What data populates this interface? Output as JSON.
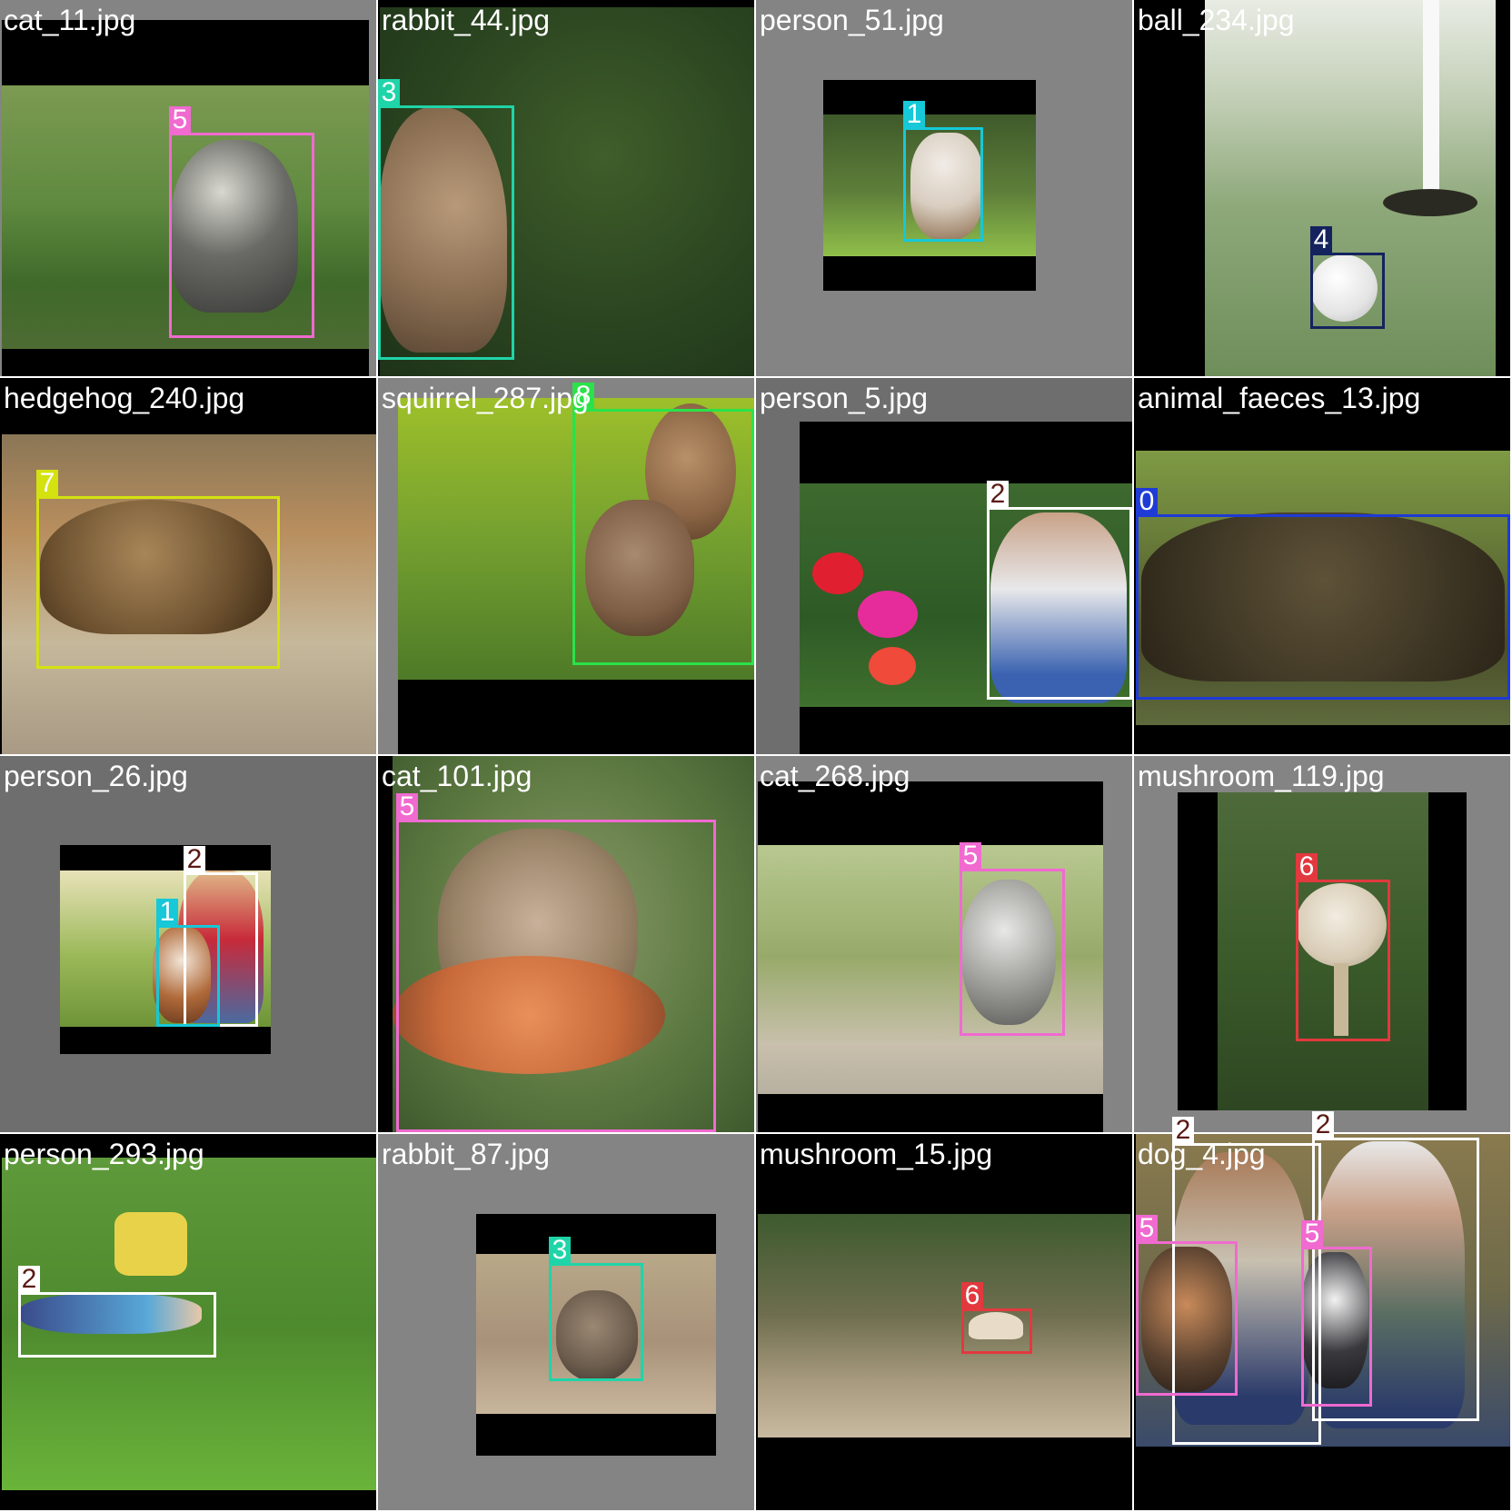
{
  "class_colors": {
    "0": "#1f3bd6",
    "1": "#16c8d8",
    "2": "#ffffff",
    "3": "#1fd4a8",
    "4": "#14235e",
    "5": "#f06ad0",
    "6": "#e2393e",
    "7": "#d4e20f",
    "8": "#2ae24a"
  },
  "label_text_colors": {
    "2": "#5a1a14"
  },
  "tiles": [
    {
      "filename": "cat_11.jpg",
      "subject": "cat",
      "boxes": [
        {
          "class": "5"
        }
      ]
    },
    {
      "filename": "rabbit_44.jpg",
      "subject": "rabbit",
      "boxes": [
        {
          "class": "3"
        }
      ]
    },
    {
      "filename": "person_51.jpg",
      "subject": "dog",
      "boxes": [
        {
          "class": "1"
        }
      ]
    },
    {
      "filename": "ball_234.jpg",
      "subject": "golf-ball",
      "boxes": [
        {
          "class": "4"
        }
      ]
    },
    {
      "filename": "hedgehog_240.jpg",
      "subject": "hedgehog",
      "boxes": [
        {
          "class": "7"
        }
      ]
    },
    {
      "filename": "squirrel_287.jpg",
      "subject": "squirrel",
      "boxes": [
        {
          "class": "8"
        }
      ]
    },
    {
      "filename": "person_5.jpg",
      "subject": "child",
      "boxes": [
        {
          "class": "2"
        }
      ]
    },
    {
      "filename": "animal_faeces_13.jpg",
      "subject": "faeces",
      "boxes": [
        {
          "class": "0"
        }
      ]
    },
    {
      "filename": "person_26.jpg",
      "subject": "woman-with-dog",
      "boxes": [
        {
          "class": "2"
        },
        {
          "class": "1"
        }
      ]
    },
    {
      "filename": "cat_101.jpg",
      "subject": "cat",
      "boxes": [
        {
          "class": "5"
        }
      ]
    },
    {
      "filename": "cat_268.jpg",
      "subject": "kitten",
      "boxes": [
        {
          "class": "5"
        }
      ]
    },
    {
      "filename": "mushroom_119.jpg",
      "subject": "mushroom",
      "boxes": [
        {
          "class": "6"
        }
      ]
    },
    {
      "filename": "person_293.jpg",
      "subject": "person",
      "boxes": [
        {
          "class": "2"
        }
      ]
    },
    {
      "filename": "rabbit_87.jpg",
      "subject": "rabbit",
      "boxes": [
        {
          "class": "3"
        }
      ]
    },
    {
      "filename": "mushroom_15.jpg",
      "subject": "mushroom",
      "boxes": [
        {
          "class": "6"
        }
      ]
    },
    {
      "filename": "dog_4.jpg",
      "subject": "couple-with-pets",
      "boxes": [
        {
          "class": "2"
        },
        {
          "class": "2"
        },
        {
          "class": "5"
        },
        {
          "class": "5"
        }
      ]
    }
  ]
}
